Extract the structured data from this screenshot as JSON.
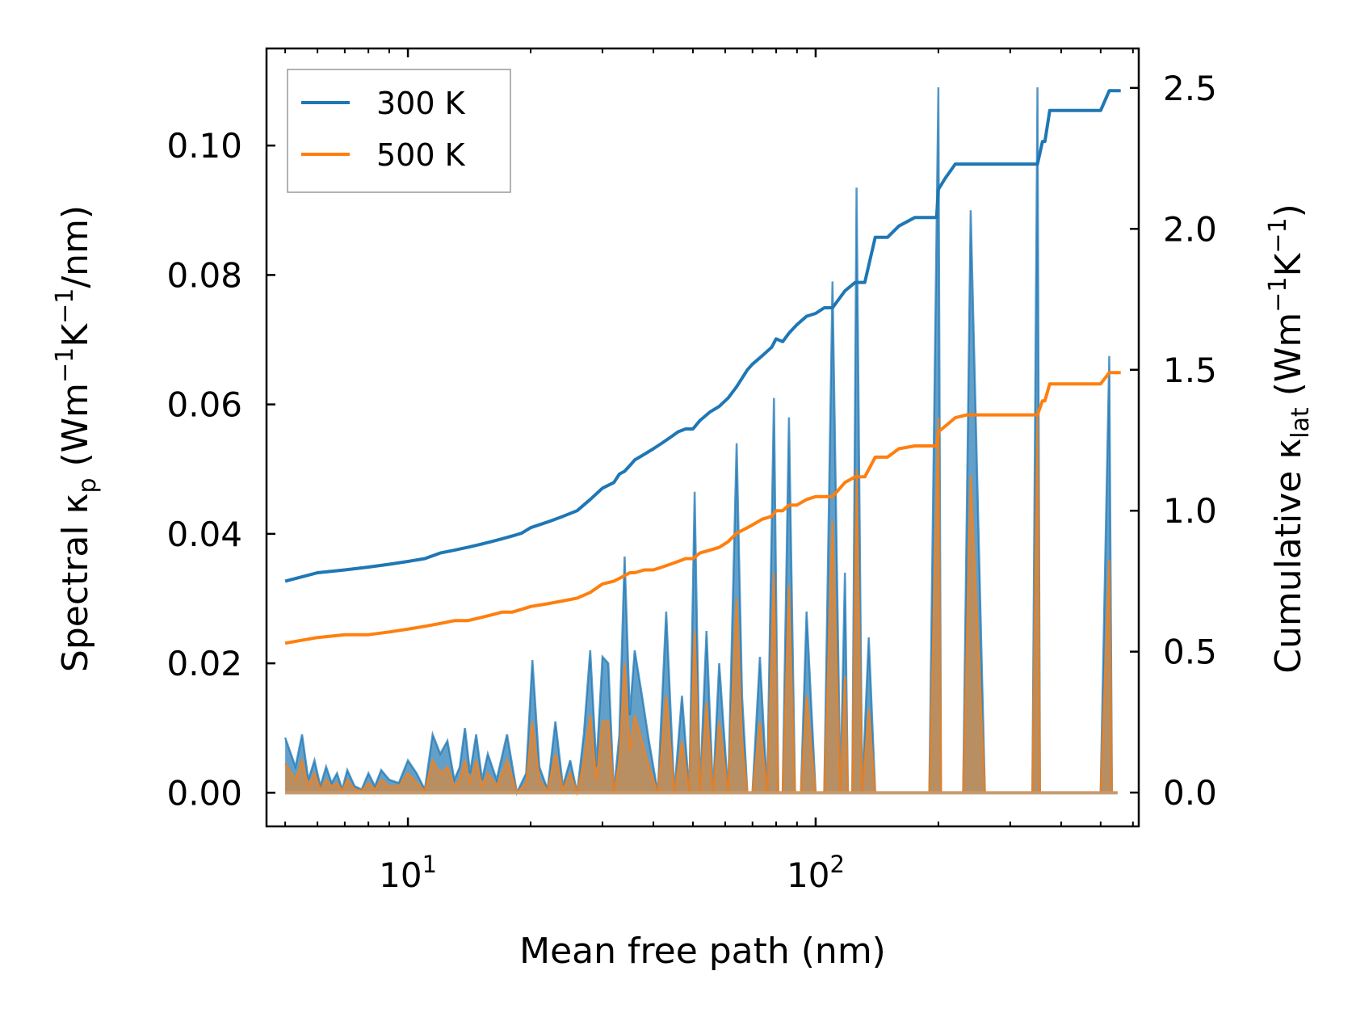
{
  "chart_data": {
    "type": "line+area",
    "xlabel": "Mean free path (nm)",
    "ylabel": {
      "main": "Spectral κ",
      "sub": "p",
      "unit_open": " (Wm",
      "exp1": "−1",
      "unit_mid": "K",
      "exp2": "−1",
      "unit_close": "/nm)"
    },
    "y2label": {
      "main": "Cumulative κ",
      "sub": "lat",
      "unit_open": " (Wm",
      "exp1": "−1",
      "unit_mid": "K",
      "exp2": "−1",
      "unit_close": ")"
    },
    "xscale": "log",
    "xlim": [
      4.5,
      620
    ],
    "ylim": [
      -0.0052,
      0.115
    ],
    "y2lim": [
      -0.12,
      2.64
    ],
    "x_ticks": [
      {
        "base": "10",
        "exp": "1",
        "value": 10
      },
      {
        "base": "10",
        "exp": "2",
        "value": 100
      }
    ],
    "y_ticks": [
      {
        "label": "0.00",
        "value": 0
      },
      {
        "label": "0.02",
        "value": 0.02
      },
      {
        "label": "0.04",
        "value": 0.04
      },
      {
        "label": "0.06",
        "value": 0.06
      },
      {
        "label": "0.08",
        "value": 0.08
      },
      {
        "label": "0.10",
        "value": 0.1
      }
    ],
    "y2_ticks": [
      {
        "label": "0.0",
        "value": 0
      },
      {
        "label": "0.5",
        "value": 0.5
      },
      {
        "label": "1.0",
        "value": 1.0
      },
      {
        "label": "1.5",
        "value": 1.5
      },
      {
        "label": "2.0",
        "value": 2.0
      },
      {
        "label": "2.5",
        "value": 2.5
      }
    ],
    "legend": {
      "position": "upper-left",
      "entries": [
        {
          "label": "300 K",
          "color": "#1f77b4"
        },
        {
          "label": "500 K",
          "color": "#ff7f0e"
        }
      ]
    },
    "spectral_x": [
      5.0,
      5.3,
      5.5,
      5.7,
      5.9,
      6.1,
      6.3,
      6.5,
      6.7,
      6.9,
      7.1,
      7.4,
      7.7,
      8.0,
      8.3,
      8.6,
      9.0,
      9.5,
      10.0,
      10.5,
      11.0,
      11.5,
      12.0,
      12.5,
      13.0,
      13.4,
      13.8,
      14.2,
      14.7,
      15.2,
      15.7,
      16.5,
      17.5,
      18.5,
      19.5,
      20.2,
      21.0,
      22.0,
      23.0,
      24.0,
      25.0,
      26.0,
      27.0,
      28.0,
      29.0,
      30.0,
      31.0,
      32.0,
      33.0,
      34.0,
      35.0,
      36.0,
      37.5,
      39.0,
      41.0,
      43.0,
      45.0,
      47.0,
      49.0,
      50.5,
      52.0,
      54.0,
      56.0,
      58.0,
      61.0,
      64.0,
      66.0,
      68.0,
      70.0,
      73.0,
      76.0,
      79.0,
      81.0,
      83.0,
      86.0,
      89.0,
      92.0,
      95.0,
      100.0,
      105.0,
      110.0,
      115.0,
      118.0,
      120.0,
      123.0,
      126.0,
      130.0,
      135.0,
      140.0,
      145.0,
      150.0,
      155.0,
      160.0,
      165.0,
      170.0,
      175.0,
      180.0,
      190.0,
      200.0,
      203.0,
      206.0,
      210.0,
      215.0,
      220.0,
      225.0,
      230.0,
      240.0,
      260.0,
      300.0,
      340.0,
      350.0,
      355.0,
      365.0,
      370.0,
      375.0,
      380.0,
      390.0,
      500.0,
      525.0,
      533.0,
      540.0,
      550.0
    ],
    "spectral_300": [
      0.0085,
      0.004,
      0.009,
      0.002,
      0.005,
      0.001,
      0.004,
      0.0015,
      0.003,
      0.0005,
      0.0035,
      0.001,
      0.0005,
      0.003,
      0.001,
      0.0035,
      0.002,
      0.0015,
      0.005,
      0.003,
      0.0005,
      0.009,
      0.006,
      0.008,
      0.002,
      0.004,
      0.01,
      0.003,
      0.009,
      0.002,
      0.006,
      0.002,
      0.009,
      0.0,
      0.003,
      0.0205,
      0.004,
      0.0005,
      0.011,
      0.001,
      0.005,
      0.0,
      0.009,
      0.022,
      0.004,
      0.021,
      0.02,
      0.0,
      0.009,
      0.0365,
      0.012,
      0.022,
      0.015,
      0.008,
      0.0,
      0.028,
      0.0,
      0.015,
      0.0,
      0.0465,
      0.0,
      0.025,
      0.0,
      0.02,
      0.0,
      0.054,
      0.015,
      0.0,
      0.0,
      0.021,
      0.0,
      0.061,
      0.0,
      0.0,
      0.058,
      0.0,
      0.0,
      0.028,
      0.0,
      0.0,
      0.079,
      0.0,
      0.034,
      0.0,
      0.0,
      0.0935,
      0.0,
      0.024,
      0.0,
      0.0,
      0.0,
      0.0,
      0.0,
      0.0,
      0.0,
      0.0,
      0.0,
      0.0,
      0.109,
      0.0,
      0.0,
      0.0,
      0.0,
      0.0,
      0.0,
      0.0,
      0.09,
      0.0,
      0.0,
      0.0,
      0.109,
      0.0,
      0.0,
      0.0,
      0.0,
      0.0,
      0.0,
      0.0,
      0.0675,
      0.0,
      0.0,
      0.0
    ],
    "spectral_500": [
      0.0045,
      0.002,
      0.005,
      0.001,
      0.003,
      0.0005,
      0.002,
      0.001,
      0.0015,
      0.0003,
      0.002,
      0.0005,
      0.0003,
      0.0015,
      0.0005,
      0.002,
      0.001,
      0.001,
      0.003,
      0.0015,
      0.0003,
      0.005,
      0.003,
      0.004,
      0.001,
      0.002,
      0.005,
      0.0015,
      0.005,
      0.001,
      0.003,
      0.001,
      0.005,
      0.0,
      0.0015,
      0.011,
      0.002,
      0.0003,
      0.006,
      0.0005,
      0.003,
      0.0,
      0.005,
      0.012,
      0.002,
      0.011,
      0.011,
      0.0,
      0.005,
      0.02,
      0.0065,
      0.012,
      0.008,
      0.004,
      0.0,
      0.015,
      0.0,
      0.008,
      0.0,
      0.025,
      0.0,
      0.014,
      0.0,
      0.011,
      0.0,
      0.03,
      0.008,
      0.0,
      0.0,
      0.011,
      0.0,
      0.034,
      0.0,
      0.0,
      0.032,
      0.0,
      0.0,
      0.015,
      0.0,
      0.0,
      0.042,
      0.0,
      0.018,
      0.0,
      0.0,
      0.05,
      0.0,
      0.013,
      0.0,
      0.0,
      0.0,
      0.0,
      0.0,
      0.0,
      0.0,
      0.0,
      0.0,
      0.0,
      0.058,
      0.0,
      0.0,
      0.0,
      0.0,
      0.0,
      0.0,
      0.0,
      0.049,
      0.0,
      0.0,
      0.0,
      0.059,
      0.0,
      0.0,
      0.0,
      0.0,
      0.0,
      0.0,
      0.0,
      0.036,
      0.0,
      0.0,
      0.0
    ],
    "series": [
      {
        "name": "300 K",
        "color": "#1f77b4",
        "x": [
          5.0,
          6.0,
          7.0,
          8.0,
          9.0,
          10.0,
          11.0,
          12.0,
          13.0,
          14.0,
          15.0,
          16.0,
          17.0,
          18.0,
          19.0,
          20.0,
          22.0,
          24.0,
          26.0,
          28.0,
          30.0,
          32.0,
          33.0,
          34.0,
          35.0,
          36.0,
          38.0,
          40.0,
          42.0,
          44.0,
          46.0,
          48.0,
          50.0,
          52.0,
          55.0,
          58.0,
          61.0,
          64.0,
          66.0,
          68.0,
          70.0,
          74.0,
          78.0,
          80.0,
          83.0,
          86.0,
          90.0,
          95.0,
          100.0,
          105.0,
          110.0,
          118.0,
          125.0,
          132.0,
          140.0,
          150.0,
          160.0,
          175.0,
          198.0,
          200.0,
          208.0,
          220.0,
          235.0,
          260.0,
          300.0,
          340.0,
          350.0,
          360.0,
          365.0,
          375.0,
          380.0,
          400.0,
          500.0,
          525.0,
          540.0,
          560.0
        ],
        "cumulative": [
          0.75,
          0.78,
          0.79,
          0.8,
          0.81,
          0.82,
          0.83,
          0.85,
          0.86,
          0.87,
          0.88,
          0.89,
          0.9,
          0.91,
          0.92,
          0.94,
          0.96,
          0.98,
          1.0,
          1.04,
          1.08,
          1.1,
          1.13,
          1.14,
          1.16,
          1.18,
          1.2,
          1.22,
          1.24,
          1.26,
          1.28,
          1.29,
          1.29,
          1.32,
          1.35,
          1.37,
          1.4,
          1.44,
          1.47,
          1.5,
          1.52,
          1.55,
          1.58,
          1.61,
          1.6,
          1.63,
          1.66,
          1.69,
          1.7,
          1.72,
          1.72,
          1.78,
          1.81,
          1.81,
          1.97,
          1.97,
          2.01,
          2.04,
          2.04,
          2.14,
          2.18,
          2.23,
          2.23,
          2.23,
          2.23,
          2.23,
          2.23,
          2.31,
          2.31,
          2.42,
          2.42,
          2.42,
          2.42,
          2.49,
          2.49,
          2.49
        ]
      },
      {
        "name": "500 K",
        "color": "#ff7f0e",
        "x": [
          5.0,
          6.0,
          7.0,
          8.0,
          9.0,
          10.0,
          11.0,
          12.0,
          13.0,
          14.0,
          15.0,
          16.0,
          17.0,
          18.0,
          19.0,
          20.0,
          22.0,
          24.0,
          26.0,
          28.0,
          30.0,
          32.0,
          33.0,
          34.0,
          35.0,
          36.0,
          38.0,
          40.0,
          42.0,
          44.0,
          46.0,
          48.0,
          50.0,
          52.0,
          55.0,
          58.0,
          61.0,
          64.0,
          66.0,
          68.0,
          70.0,
          74.0,
          78.0,
          80.0,
          83.0,
          86.0,
          90.0,
          95.0,
          100.0,
          105.0,
          110.0,
          118.0,
          125.0,
          132.0,
          140.0,
          150.0,
          160.0,
          175.0,
          198.0,
          200.0,
          208.0,
          220.0,
          235.0,
          260.0,
          300.0,
          340.0,
          350.0,
          360.0,
          365.0,
          375.0,
          380.0,
          400.0,
          500.0,
          525.0,
          540.0,
          560.0
        ],
        "cumulative": [
          0.53,
          0.55,
          0.56,
          0.56,
          0.57,
          0.58,
          0.59,
          0.6,
          0.61,
          0.61,
          0.62,
          0.63,
          0.64,
          0.64,
          0.65,
          0.66,
          0.67,
          0.68,
          0.69,
          0.71,
          0.74,
          0.75,
          0.76,
          0.77,
          0.78,
          0.78,
          0.79,
          0.79,
          0.8,
          0.81,
          0.82,
          0.83,
          0.83,
          0.85,
          0.86,
          0.87,
          0.89,
          0.92,
          0.93,
          0.94,
          0.95,
          0.97,
          0.98,
          1.0,
          1.0,
          1.02,
          1.02,
          1.04,
          1.05,
          1.05,
          1.05,
          1.1,
          1.12,
          1.12,
          1.19,
          1.19,
          1.22,
          1.23,
          1.23,
          1.28,
          1.3,
          1.33,
          1.34,
          1.34,
          1.34,
          1.34,
          1.34,
          1.39,
          1.39,
          1.45,
          1.45,
          1.45,
          1.45,
          1.49,
          1.49,
          1.49
        ]
      }
    ]
  }
}
